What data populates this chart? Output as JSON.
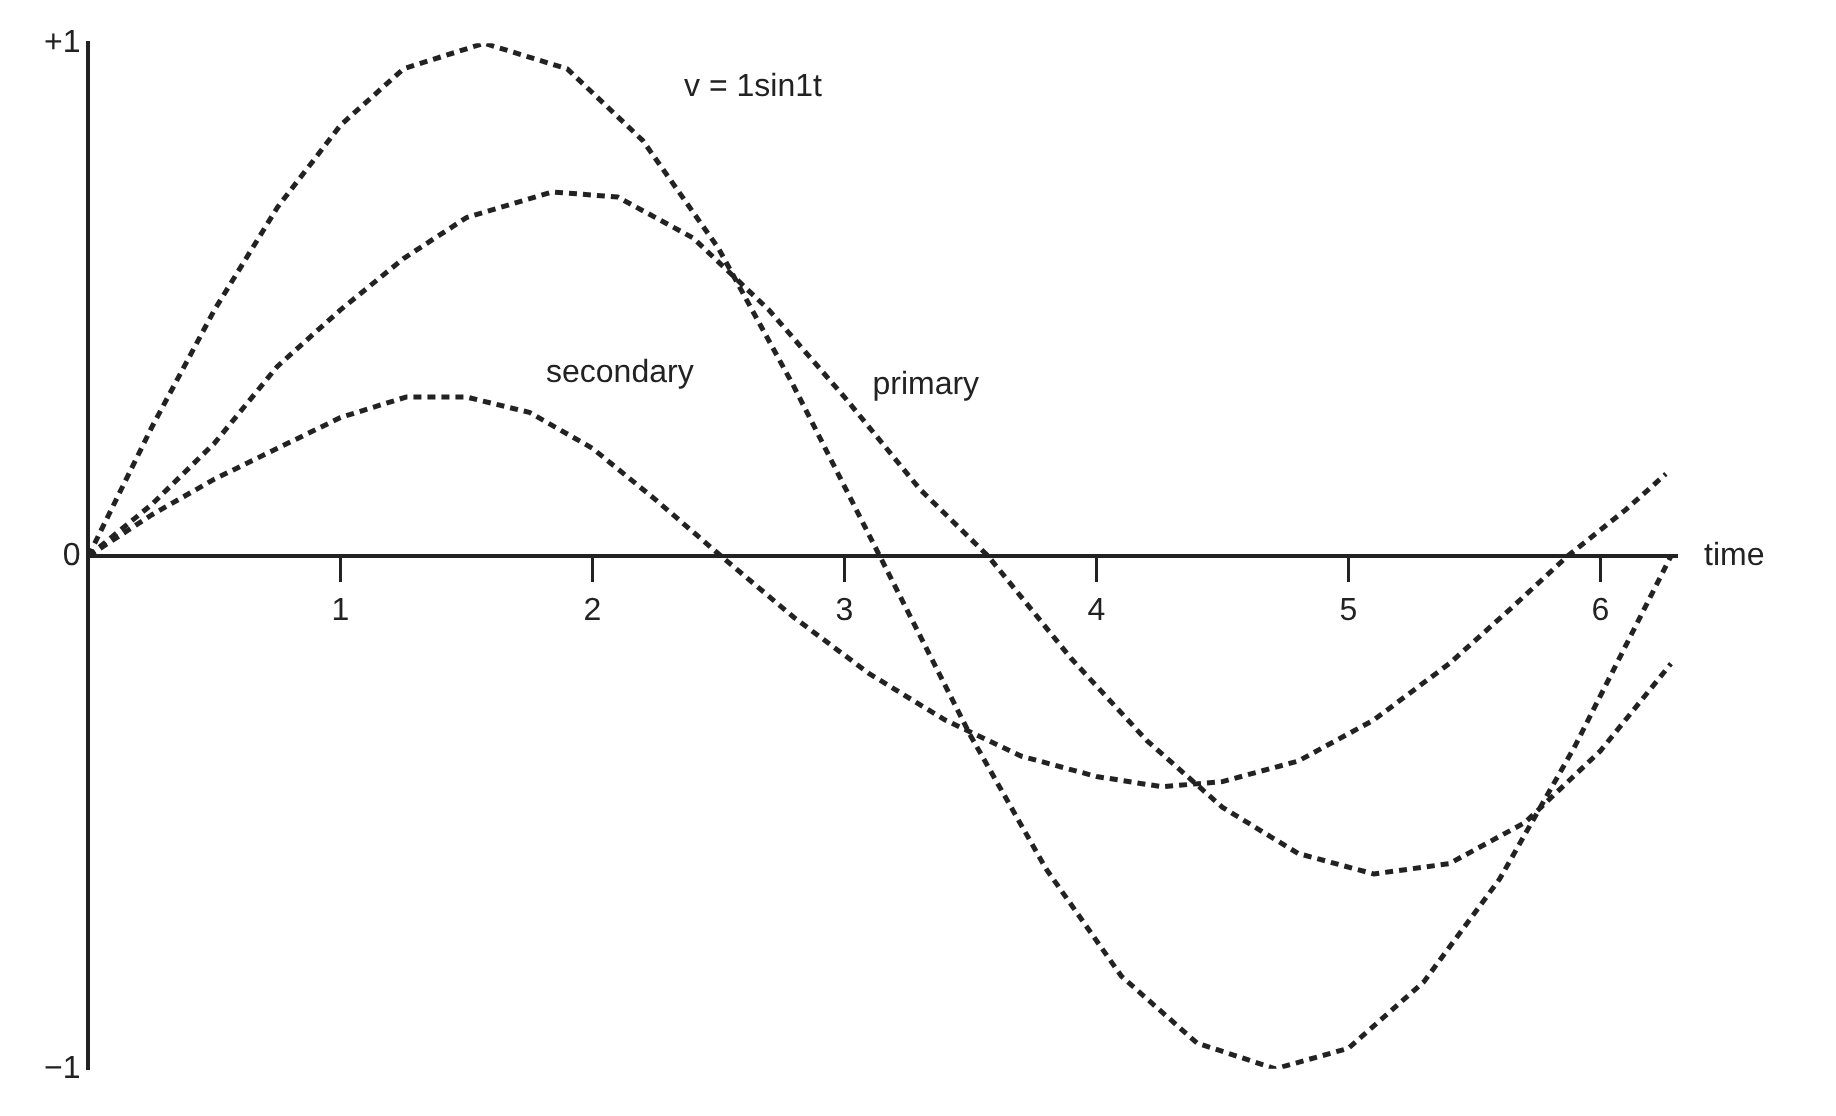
{
  "chart_data": {
    "type": "line",
    "xlabel": "time",
    "xlim": [
      0,
      6.3
    ],
    "xticks": [
      1,
      2,
      3,
      4,
      5,
      6
    ],
    "ylim": [
      -1,
      1
    ],
    "yticks": [
      {
        "value": -1,
        "label": "−1"
      },
      0,
      {
        "value": 1,
        "label": "+1"
      }
    ],
    "grid": false,
    "legend": false,
    "marker": "none",
    "line_style": "dashed",
    "series": [
      {
        "name": "v = 1sin1t",
        "color": "#222222",
        "x": [
          0,
          0.25,
          0.5,
          0.75,
          1,
          1.25,
          1.57,
          1.9,
          2.2,
          2.5,
          2.8,
          3.14,
          3.5,
          3.8,
          4.1,
          4.4,
          4.71,
          5,
          5.3,
          5.6,
          5.9,
          6.28
        ],
        "values": [
          0,
          0.25,
          0.48,
          0.68,
          0.84,
          0.95,
          1,
          0.95,
          0.81,
          0.6,
          0.33,
          0,
          -0.35,
          -0.61,
          -0.82,
          -0.95,
          -1,
          -0.96,
          -0.83,
          -0.63,
          -0.37,
          0
        ]
      },
      {
        "name": "primary",
        "color": "#222222",
        "x": [
          0,
          0.25,
          0.5,
          0.75,
          1,
          1.25,
          1.5,
          1.84,
          2.1,
          2.4,
          2.7,
          3,
          3.3,
          3.57,
          3.9,
          4.2,
          4.5,
          4.8,
          5.1,
          5.4,
          5.7,
          6,
          6.28
        ],
        "values": [
          0,
          0.1,
          0.22,
          0.37,
          0.48,
          0.58,
          0.66,
          0.71,
          0.7,
          0.62,
          0.48,
          0.31,
          0.13,
          0,
          -0.2,
          -0.36,
          -0.49,
          -0.58,
          -0.62,
          -0.6,
          -0.52,
          -0.38,
          -0.21
        ]
      },
      {
        "name": "secondary",
        "color": "#222222",
        "x": [
          0,
          0.25,
          0.5,
          0.75,
          1,
          1.26,
          1.5,
          1.75,
          2,
          2.25,
          2.51,
          2.8,
          3.1,
          3.4,
          3.7,
          4,
          4.26,
          4.5,
          4.8,
          5.1,
          5.4,
          5.65,
          5.87,
          6.1,
          6.26
        ],
        "values": [
          0,
          0.08,
          0.15,
          0.21,
          0.27,
          0.31,
          0.31,
          0.28,
          0.21,
          0.11,
          0,
          -0.12,
          -0.23,
          -0.32,
          -0.39,
          -0.43,
          -0.45,
          -0.44,
          -0.4,
          -0.32,
          -0.21,
          -0.1,
          0,
          0.09,
          0.16
        ]
      }
    ]
  }
}
